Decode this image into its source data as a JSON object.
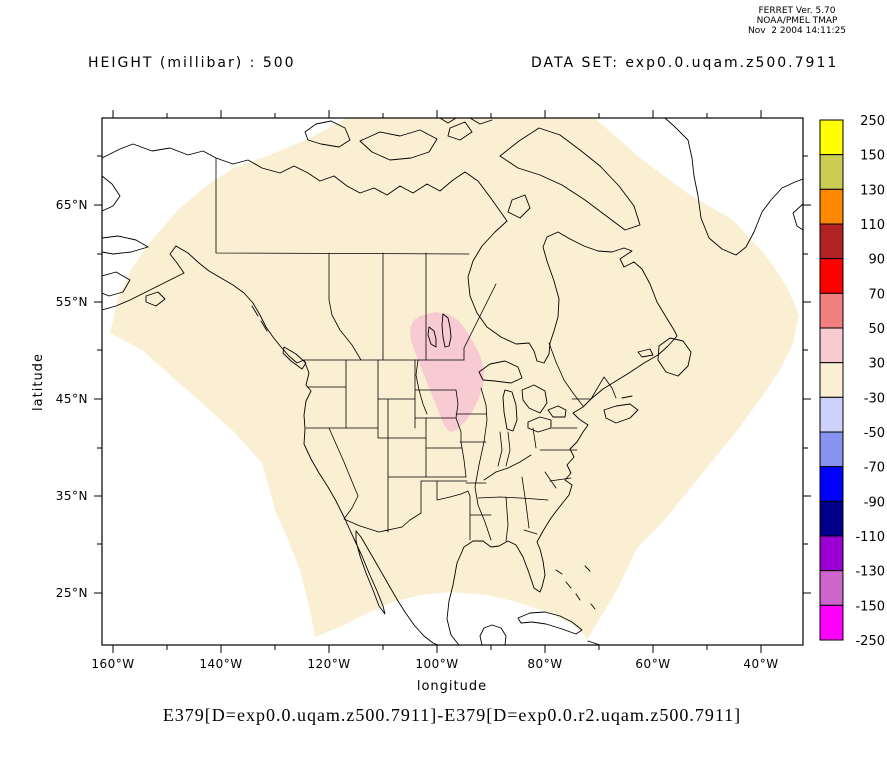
{
  "ferret_info": {
    "line1": "FERRET Ver. 5.70",
    "line2": "NOAA/PMEL TMAP",
    "line3": "Nov  2 2004 14:11:25"
  },
  "titles": {
    "field": "HEIGHT (millibar) : 500",
    "dataset": "DATA SET: exp0.0.uqam.z500.7911"
  },
  "axes": {
    "x_label": "longitude",
    "y_label": "latitude",
    "x_major_labels": [
      "160°W",
      "140°W",
      "120°W",
      "100°W",
      "80°W",
      "60°W",
      "40°W"
    ],
    "y_major_labels": [
      "65°N",
      "55°N",
      "45°N",
      "35°N",
      "25°N"
    ]
  },
  "colorbar": {
    "labels": [
      "250",
      "150",
      "130",
      "110",
      "90",
      "70",
      "50",
      "30",
      "-30",
      "-50",
      "-70",
      "-90",
      "-110",
      "-130",
      "-150",
      "-250"
    ],
    "colors": [
      "#FFFF00",
      "#CCCC55",
      "#FF8800",
      "#B22222",
      "#FF0000",
      "#F08080",
      "#F8CAD2",
      "#FAEFD2",
      "#CCD2FA",
      "#8892F0",
      "#0000FF",
      "#00008B",
      "#9B00D3",
      "#CC66CC",
      "#FF00FF"
    ]
  },
  "map": {
    "background_fill": "#FAEFD2",
    "anomaly_fill": "#F8CAD2"
  },
  "caption": "E379[D=exp0.0.uqam.z500.7911]-E379[D=exp0.0.r2.uqam.z500.7911]",
  "chart_data": {
    "type": "heatmap",
    "subtype": "filled-contour-map",
    "title": "HEIGHT (millibar) : 500",
    "dataset": "exp0.0.uqam.z500.7911",
    "expression": "E379[D=exp0.0.uqam.z500.7911]-E379[D=exp0.0.r2.uqam.z500.7911]",
    "xlabel": "longitude",
    "ylabel": "latitude",
    "x_ticks": [
      "160°W",
      "140°W",
      "120°W",
      "100°W",
      "80°W",
      "60°W",
      "40°W"
    ],
    "y_ticks": [
      "65°N",
      "55°N",
      "45°N",
      "35°N",
      "25°N"
    ],
    "xlim": [
      "162°W",
      "32°W"
    ],
    "ylim": [
      "19.6°N",
      "74°N"
    ],
    "levels": [
      -250,
      -150,
      -130,
      -110,
      -90,
      -70,
      -50,
      -30,
      30,
      50,
      70,
      90,
      110,
      130,
      150,
      250
    ],
    "palette_bottom_to_top": [
      "#FF00FF",
      "#CC66CC",
      "#9B00D3",
      "#00008B",
      "#0000FF",
      "#8892F0",
      "#CCD2FA",
      "#FAEFD2",
      "#F8CAD2",
      "#F08080",
      "#FF0000",
      "#B22222",
      "#FF8800",
      "#CCCC55",
      "#FFFF00"
    ],
    "legend_position": "right",
    "grid": false,
    "regions": [
      {
        "value_range": [
          -30,
          30
        ],
        "color": "#FAEFD2",
        "extent": "entire fan-shaped model domain over North America"
      },
      {
        "value_range": [
          30,
          50
        ],
        "color": "#F8CAD2",
        "extent": "blob over southern Manitoba, eastern Dakotas and Minnesota, approx 104°W-90°W, 43°N-53°N"
      }
    ]
  }
}
